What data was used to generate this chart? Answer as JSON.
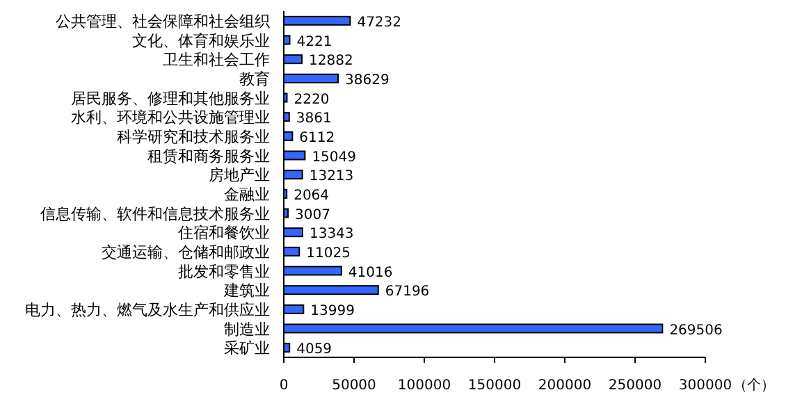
{
  "chart_data": {
    "type": "bar",
    "orientation": "horizontal",
    "xlabel": "（个）",
    "categories": [
      "公共管理、社会保障和社会组织",
      "文化、体育和娱乐业",
      "卫生和社会工作",
      "教育",
      "居民服务、修理和其他服务业",
      "水利、环境和公共设施管理业",
      "科学研究和技术服务业",
      "租赁和商务服务业",
      "房地产业",
      "金融业",
      "信息传输、软件和信息技术服务业",
      "住宿和餐饮业",
      "交通运输、仓储和邮政业",
      "批发和零售业",
      "建筑业",
      "电力、热力、燃气及水生产和供应业",
      "制造业",
      "采矿业"
    ],
    "values": [
      47232,
      4221,
      12882,
      38629,
      2220,
      3861,
      6112,
      15049,
      13213,
      2064,
      3007,
      13343,
      11025,
      41016,
      67196,
      13999,
      269506,
      4059
    ],
    "color": "#3366ff",
    "data_labels": true,
    "grid": false,
    "xlim": [
      0,
      300000
    ],
    "xticks": [
      0,
      50000,
      100000,
      150000,
      200000,
      250000,
      300000
    ]
  }
}
